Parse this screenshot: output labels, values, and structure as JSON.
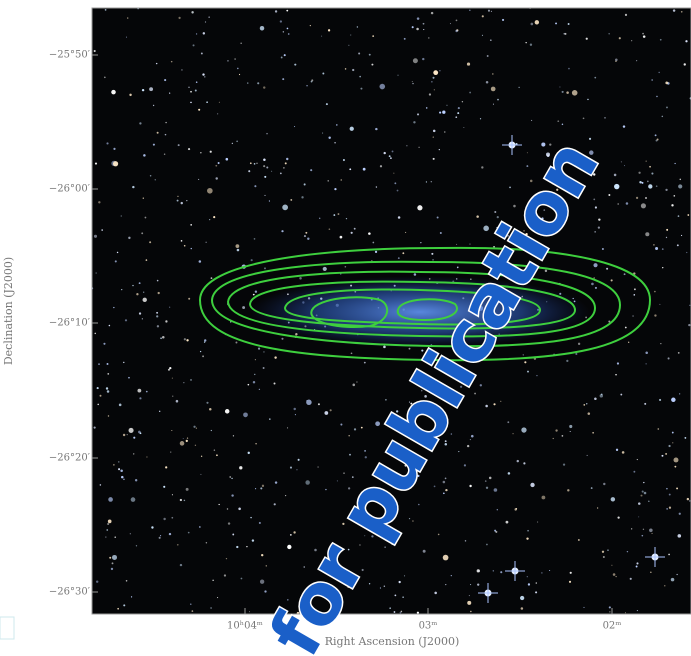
{
  "figure": {
    "y_axis": {
      "label": "Declination (J2000)",
      "ticks": [
        "−25°50′",
        "−26°00′",
        "−26°10′",
        "−26°20′",
        "−26°30′"
      ]
    },
    "x_axis": {
      "label": "Right Ascension (J2000)",
      "ticks": [
        "10ʰ04ᵐ",
        "03ᵐ",
        "02ᵐ"
      ]
    },
    "watermark": "for publication"
  }
}
